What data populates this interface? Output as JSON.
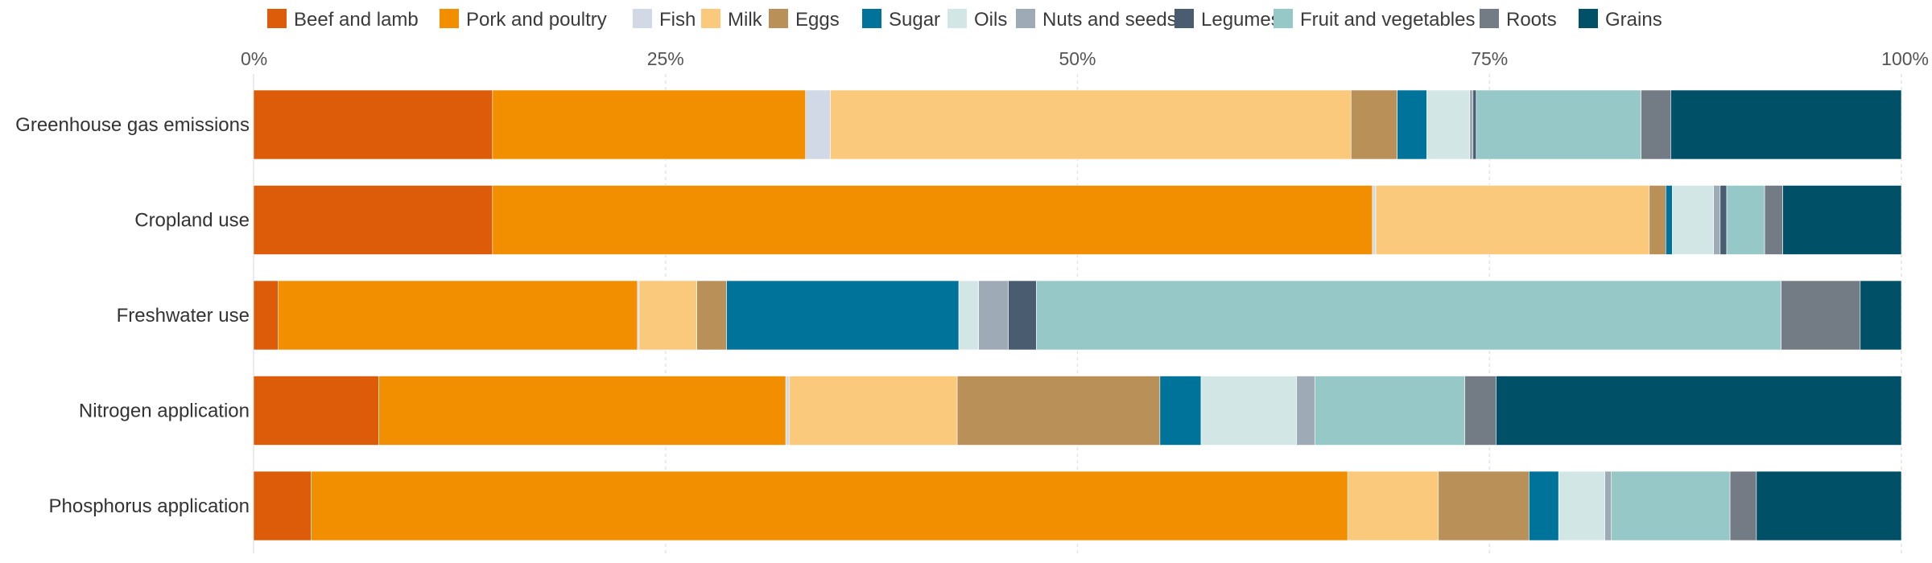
{
  "chart_data": {
    "type": "bar",
    "orientation": "horizontal",
    "stacked": true,
    "normalized": true,
    "title": "",
    "xlabel": "",
    "ylabel": "",
    "xlim": [
      0,
      100
    ],
    "x_ticks": [
      "0%",
      "25%",
      "50%",
      "75%",
      "100%"
    ],
    "grid": true,
    "legend_position": "top",
    "categories": [
      "Greenhouse gas emissions",
      "Cropland use",
      "Freshwater use",
      "Nitrogen application",
      "Phosphorus application"
    ],
    "series": [
      {
        "name": "Beef and lamb",
        "color": "#dd5c0a",
        "values": [
          14.5,
          14.5,
          1.5,
          7.6,
          3.5
        ]
      },
      {
        "name": "Pork and poultry",
        "color": "#f28f00",
        "values": [
          19.0,
          53.4,
          21.8,
          24.7,
          62.9
        ]
      },
      {
        "name": "Fish",
        "color": "#d0d9e5",
        "values": [
          1.5,
          0.2,
          0.1,
          0.2,
          0.0
        ]
      },
      {
        "name": "Milk",
        "color": "#fbc97b",
        "values": [
          31.6,
          16.6,
          3.5,
          10.2,
          5.5
        ]
      },
      {
        "name": "Eggs",
        "color": "#b89058",
        "values": [
          2.8,
          1.0,
          1.8,
          12.3,
          5.5
        ]
      },
      {
        "name": "Sugar",
        "color": "#00739a",
        "values": [
          1.8,
          0.4,
          14.1,
          2.5,
          1.8
        ]
      },
      {
        "name": "Oils",
        "color": "#d2e7e5",
        "values": [
          2.6,
          2.5,
          1.2,
          5.8,
          2.8
        ]
      },
      {
        "name": "Nuts and seeds",
        "color": "#9eaab6",
        "values": [
          0.2,
          0.4,
          1.8,
          1.1,
          0.4
        ]
      },
      {
        "name": "Legumes",
        "color": "#4a5d70",
        "values": [
          0.2,
          0.4,
          1.7,
          0.0,
          0.0
        ]
      },
      {
        "name": "Fruit and vegetables",
        "color": "#95c8c7",
        "values": [
          10.0,
          2.3,
          45.2,
          9.1,
          7.2
        ]
      },
      {
        "name": "Roots",
        "color": "#737b84",
        "values": [
          1.8,
          1.1,
          4.8,
          1.9,
          1.6
        ]
      },
      {
        "name": "Grains",
        "color": "#005068",
        "values": [
          14.0,
          7.2,
          2.5,
          24.6,
          8.8
        ]
      }
    ]
  }
}
